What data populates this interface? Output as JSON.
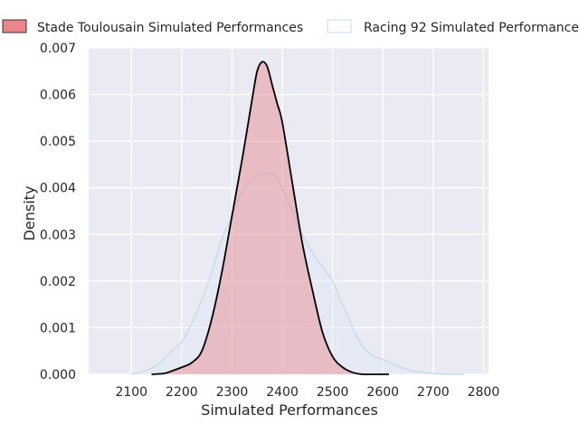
{
  "chart_data": {
    "type": "area",
    "title": "",
    "xlabel": "Simulated Performances",
    "ylabel": "Density",
    "xlim": [
      2015,
      2810
    ],
    "ylim": [
      0,
      0.007
    ],
    "x_ticks": [
      2100,
      2200,
      2300,
      2400,
      2500,
      2600,
      2700,
      2800
    ],
    "y_ticks": [
      0.0,
      0.001,
      0.002,
      0.003,
      0.004,
      0.005,
      0.006,
      0.007
    ],
    "y_tick_labels": [
      "0.000",
      "0.001",
      "0.002",
      "0.003",
      "0.004",
      "0.005",
      "0.006",
      "0.007"
    ],
    "grid": true,
    "legend_position": "top, outside plot",
    "series": [
      {
        "name": "Stade Toulousain Simulated Performances",
        "fill_color": "#e8868c",
        "fill_opacity": 0.45,
        "line_color": "#000000",
        "legend_swatch_fill": "#e8868c",
        "legend_swatch_edge": "#333333",
        "x": [
          2140,
          2165,
          2180,
          2200,
          2220,
          2240,
          2260,
          2280,
          2300,
          2320,
          2340,
          2350,
          2360,
          2370,
          2380,
          2390,
          2400,
          2420,
          2440,
          2460,
          2480,
          2500,
          2520,
          2540,
          2560,
          2580,
          2600,
          2612
        ],
        "y": [
          0.0,
          2e-05,
          7e-05,
          0.00015,
          0.00025,
          0.0005,
          0.0012,
          0.0022,
          0.0034,
          0.0046,
          0.0059,
          0.0065,
          0.0067,
          0.0066,
          0.0062,
          0.0058,
          0.0054,
          0.0041,
          0.0028,
          0.0018,
          0.0009,
          0.00038,
          0.00015,
          4e-05,
          0.0,
          0.0,
          0.0,
          0.0
        ]
      },
      {
        "name": "Racing 92 Simulated Performances",
        "fill_color": "#dce8f5",
        "fill_opacity": 0.35,
        "line_color": "#c7dbef",
        "legend_swatch_fill": "#ffffff",
        "legend_swatch_edge": "#c7dbef",
        "x": [
          2100,
          2120,
          2150,
          2180,
          2200,
          2220,
          2240,
          2260,
          2280,
          2300,
          2320,
          2340,
          2360,
          2370,
          2380,
          2390,
          2400,
          2420,
          2440,
          2460,
          2480,
          2500,
          2520,
          2540,
          2560,
          2580,
          2600,
          2620,
          2650,
          2680,
          2700,
          2730,
          2760
        ],
        "y": [
          0.0,
          5e-05,
          0.0002,
          0.0005,
          0.0007,
          0.0011,
          0.0016,
          0.0022,
          0.0029,
          0.0034,
          0.0039,
          0.0042,
          0.0043,
          0.0043,
          0.0043,
          0.0042,
          0.004,
          0.0035,
          0.003,
          0.0026,
          0.0023,
          0.002,
          0.0015,
          0.001,
          0.0006,
          0.0004,
          0.00032,
          0.00022,
          0.0001,
          4e-05,
          2e-05,
          0.0,
          0.0
        ]
      }
    ]
  }
}
